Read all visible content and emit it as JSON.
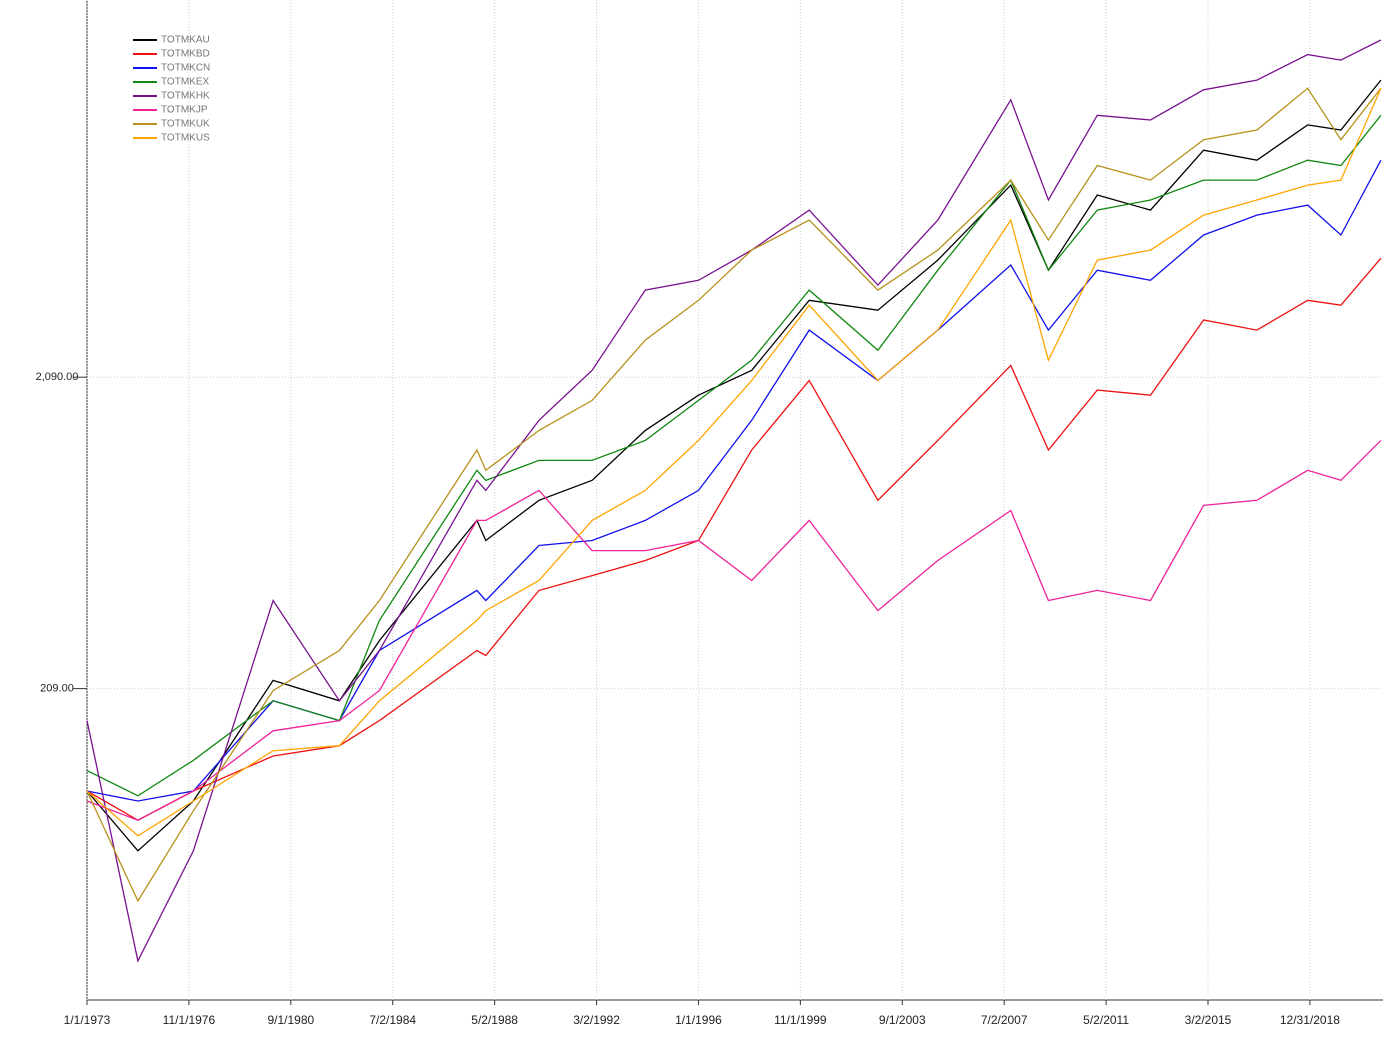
{
  "chart_data": {
    "type": "line",
    "log_y": true,
    "grid": true,
    "legend_loc": "upper left",
    "xlim": [
      "1973-01-01",
      "2021-09-30"
    ],
    "ylim": [
      20.9,
      34000
    ],
    "xticks": [
      {
        "value": "1973-01-01",
        "label": "1/1/1973"
      },
      {
        "value": "1976-11-01",
        "label": "11/1/1976"
      },
      {
        "value": "1980-09-01",
        "label": "9/1/1980"
      },
      {
        "value": "1984-07-02",
        "label": "7/2/1984"
      },
      {
        "value": "1988-05-02",
        "label": "5/2/1988"
      },
      {
        "value": "1992-03-02",
        "label": "3/2/1992"
      },
      {
        "value": "1996-01-01",
        "label": "1/1/1996"
      },
      {
        "value": "1999-11-01",
        "label": "11/1/1999"
      },
      {
        "value": "2003-09-01",
        "label": "9/1/2003"
      },
      {
        "value": "2007-07-02",
        "label": "7/2/2007"
      },
      {
        "value": "2011-05-02",
        "label": "5/2/2011"
      },
      {
        "value": "2015-03-02",
        "label": "3/2/2015"
      },
      {
        "value": "2018-12-31",
        "label": "12/31/2018"
      }
    ],
    "yticks": [
      {
        "value": 209,
        "label": "209.00"
      },
      {
        "value": 2090,
        "label": "2,090.00"
      }
    ],
    "x": [
      "1973-01-01",
      "1974-12-01",
      "1977-01-01",
      "1980-01-01",
      "1982-07-01",
      "1984-01-01",
      "1987-09-01",
      "1988-01-01",
      "1990-01-01",
      "1992-01-01",
      "1994-01-01",
      "1996-01-01",
      "1998-01-01",
      "2000-03-01",
      "2002-10-01",
      "2005-01-01",
      "2007-10-01",
      "2009-03-01",
      "2011-01-01",
      "2013-01-01",
      "2015-01-01",
      "2017-01-01",
      "2018-12-01",
      "2020-03-01",
      "2021-09-01"
    ],
    "series": [
      {
        "name": "TOTMKAU",
        "color": "#000000",
        "values": [
          98,
          63,
          91,
          222,
          191,
          298,
          725,
          625,
          841,
          975,
          1410,
          1830,
          2200,
          3690,
          3430,
          4970,
          8650,
          4610,
          8040,
          7190,
          11200,
          10400,
          13500,
          13000,
          18800
        ]
      },
      {
        "name": "TOTMKBD",
        "color": "#ee1111",
        "values": [
          98,
          79,
          98,
          127,
          137,
          165,
          277,
          267,
          432,
          482,
          539,
          625,
          1220,
          2040,
          841,
          1310,
          2280,
          1220,
          1900,
          1830,
          3190,
          2960,
          3690,
          3560,
          5040
        ]
      },
      {
        "name": "TOTMKCN",
        "color": "#1111ee",
        "values": [
          98,
          91,
          98,
          191,
          165,
          277,
          432,
          401,
          602,
          625,
          725,
          905,
          1520,
          2960,
          2040,
          2960,
          4790,
          2960,
          4610,
          4280,
          5980,
          6930,
          7460,
          5980,
          10400
        ]
      },
      {
        "name": "TOTMKEX",
        "color": "#118811",
        "values": [
          114,
          94.6,
          123,
          191,
          165,
          346,
          1050,
          975,
          1130,
          1130,
          1310,
          1760,
          2370,
          3980,
          2550,
          4610,
          8980,
          4610,
          7190,
          7750,
          8980,
          8980,
          10400,
          10000,
          14500
        ]
      },
      {
        "name": "TOTMKHK",
        "color": "#7a1290",
        "values": [
          165,
          27.9,
          63,
          401,
          191,
          277,
          975,
          905,
          1520,
          2200,
          3980,
          4280,
          5350,
          7190,
          4130,
          6680,
          16250,
          7750,
          14500,
          14000,
          17500,
          18800,
          22700,
          21800,
          25300
        ]
      },
      {
        "name": "TOTMKJP",
        "color": "#ee2299",
        "values": [
          91,
          79,
          98,
          153,
          165,
          206,
          725,
          725,
          905,
          580,
          580,
          625,
          465,
          725,
          372,
          539,
          780,
          401,
          432,
          401,
          810,
          841,
          1050,
          975,
          1310
        ]
      },
      {
        "name": "TOTMKUK",
        "color": "#b8901a",
        "values": [
          98,
          43.5,
          84.7,
          206,
          277,
          401,
          1220,
          1050,
          1410,
          1760,
          2750,
          3690,
          5350,
          6680,
          3980,
          5350,
          8980,
          5760,
          10000,
          8980,
          12100,
          13000,
          17700,
          12100,
          17700
        ]
      },
      {
        "name": "TOTMKUS",
        "color": "#ffa500",
        "values": [
          98,
          70.4,
          91,
          132,
          137,
          191,
          346,
          372,
          465,
          725,
          905,
          1310,
          2040,
          3560,
          2040,
          2960,
          6680,
          2370,
          4970,
          5350,
          6930,
          7750,
          8650,
          8980,
          17700
        ]
      }
    ]
  }
}
